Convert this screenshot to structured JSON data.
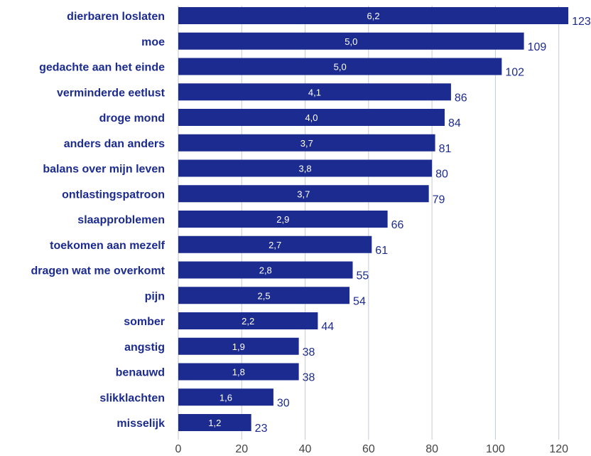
{
  "chart_data": {
    "type": "bar",
    "orientation": "horizontal",
    "categories": [
      "dierbaren loslaten",
      "moe",
      "gedachte aan het einde",
      "verminderde eetlust",
      "droge mond",
      "anders dan anders",
      "balans over mijn leven",
      "ontlastingspatroon",
      "slaapproblemen",
      "toekomen aan mezelf",
      "dragen wat me overkomt",
      "pijn",
      "somber",
      "angstig",
      "benauwd",
      "slikklachten",
      "misselijk"
    ],
    "values": [
      123,
      109,
      102,
      86,
      84,
      81,
      80,
      79,
      66,
      61,
      55,
      54,
      44,
      38,
      38,
      30,
      23
    ],
    "inner_labels": [
      "6,2",
      "5,0",
      "5,0",
      "4,1",
      "4,0",
      "3,7",
      "3,8",
      "3,7",
      "2,9",
      "2,7",
      "2,8",
      "2,5",
      "2,2",
      "1,9",
      "1,8",
      "1,6",
      "1,2"
    ],
    "xlim": [
      0,
      125
    ],
    "xticks": [
      0,
      20,
      40,
      60,
      80,
      100,
      120
    ],
    "xtick_labels": [
      "0",
      "20",
      "40",
      "60",
      "80",
      "100",
      "120"
    ],
    "grid": true,
    "colors": {
      "bar": "#1c2b8f",
      "category_text": "#1c2b8f",
      "value_text": "#1c2b8f",
      "inner_text": "#ffffff",
      "tick_text": "#444444",
      "grid": "#c5cad8"
    }
  }
}
